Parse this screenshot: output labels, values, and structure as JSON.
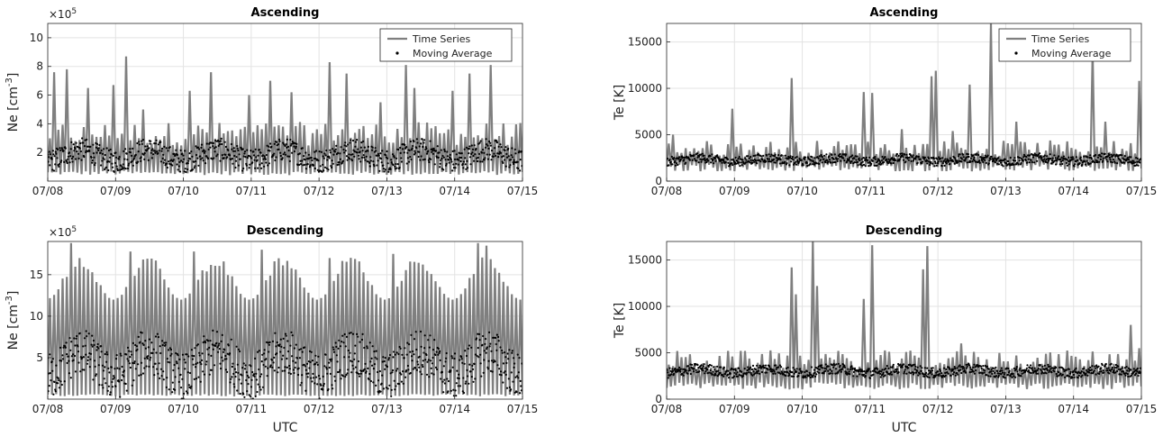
{
  "figure": {
    "xticklabels": [
      "07/08",
      "07/09",
      "07/10",
      "07/11",
      "07/12",
      "07/13",
      "07/14",
      "07/15"
    ],
    "shared_xlabel": "UTC",
    "colors": {
      "series": "#7f7f7f",
      "average": "#000000",
      "grid": "#e3e3e3"
    }
  },
  "chart_data": [
    {
      "type": "line",
      "title": "Ascending",
      "ylabel": "Ne [cm",
      "ylabel_sup": "-3",
      "ylabel_close": "]",
      "exponent_label": "×10",
      "exponent_sup": "5",
      "xlim": [
        0,
        7
      ],
      "ylim": [
        0,
        11
      ],
      "yticks": [
        2,
        4,
        6,
        8,
        10
      ],
      "legend": {
        "position": "top-right",
        "entries": [
          "Time Series",
          "Moving Average"
        ]
      },
      "series": [
        {
          "name": "Time Series",
          "kind": "spikes",
          "period": 0.0625,
          "baseline_low": 0.6,
          "baseline_high": 3.3,
          "peaks": [
            [
              0.05,
              7.6
            ],
            [
              0.22,
              7.8
            ],
            [
              0.55,
              6.5
            ],
            [
              0.92,
              6.7
            ],
            [
              1.12,
              8.7
            ],
            [
              1.35,
              5.0
            ],
            [
              2.05,
              6.3
            ],
            [
              2.38,
              7.6
            ],
            [
              2.95,
              6.0
            ],
            [
              3.25,
              7.0
            ],
            [
              3.58,
              6.2
            ],
            [
              4.15,
              8.3
            ],
            [
              4.38,
              7.5
            ],
            [
              4.88,
              5.5
            ],
            [
              5.22,
              8.1
            ],
            [
              5.38,
              6.5
            ],
            [
              5.92,
              6.3
            ],
            [
              6.2,
              7.5
            ],
            [
              6.5,
              8.1
            ],
            [
              6.98,
              11.0
            ]
          ]
        },
        {
          "name": "Moving Average",
          "kind": "band",
          "low": 1.0,
          "high": 2.6,
          "amplitude": 0.4,
          "cycles": 7
        }
      ]
    },
    {
      "type": "line",
      "title": "Ascending",
      "ylabel": "Te [K]",
      "xlim": [
        0,
        7
      ],
      "ylim": [
        0,
        17000
      ],
      "yticks": [
        0,
        5000,
        10000,
        15000
      ],
      "legend": {
        "position": "top-right",
        "entries": [
          "Time Series",
          "Moving Average"
        ]
      },
      "series": [
        {
          "name": "Time Series",
          "kind": "spikes",
          "period": 0.0625,
          "baseline_low": 1500,
          "baseline_high": 3500,
          "peaks": [
            [
              0.05,
              5000
            ],
            [
              0.95,
              7800
            ],
            [
              1.82,
              11100
            ],
            [
              2.9,
              9600
            ],
            [
              3.0,
              9500
            ],
            [
              3.45,
              5600
            ],
            [
              3.88,
              11300
            ],
            [
              3.95,
              11900
            ],
            [
              4.18,
              5400
            ],
            [
              4.42,
              10400
            ],
            [
              4.72,
              17000
            ],
            [
              5.1,
              6400
            ],
            [
              6.22,
              6300
            ],
            [
              6.28,
              14000
            ],
            [
              6.42,
              6400
            ],
            [
              6.95,
              10800
            ],
            [
              7.0,
              14100
            ]
          ]
        },
        {
          "name": "Moving Average",
          "kind": "band",
          "low": 1800,
          "high": 2800,
          "amplitude": 200,
          "cycles": 7
        }
      ]
    },
    {
      "type": "line",
      "title": "Descending",
      "ylabel": "Ne [cm",
      "ylabel_sup": "-3",
      "ylabel_close": "]",
      "exponent_label": "×10",
      "exponent_sup": "5",
      "xlim": [
        0,
        7
      ],
      "ylim": [
        0,
        19
      ],
      "yticks": [
        5,
        10,
        15
      ],
      "series": [
        {
          "name": "Time Series",
          "kind": "spikes",
          "period": 0.0625,
          "baseline_low": 0.5,
          "baseline_high": 7.0,
          "peaks": [
            [
              0.32,
              18.8
            ],
            [
              1.2,
              17.8
            ],
            [
              2.1,
              17.8
            ],
            [
              3.15,
              18.0
            ],
            [
              4.1,
              17.0
            ],
            [
              5.05,
              17.5
            ],
            [
              6.3,
              18.8
            ],
            [
              6.45,
              18.5
            ]
          ],
          "cycle_min": 12,
          "cycle_max": 17
        },
        {
          "name": "Moving Average",
          "kind": "band",
          "low": 1.5,
          "high": 7.0,
          "amplitude": 1.5,
          "cycles": 7
        }
      ]
    },
    {
      "type": "line",
      "title": "Descending",
      "ylabel": "Te [K]",
      "xlim": [
        0,
        7
      ],
      "ylim": [
        0,
        17000
      ],
      "yticks": [
        0,
        5000,
        10000,
        15000
      ],
      "series": [
        {
          "name": "Time Series",
          "kind": "spikes",
          "period": 0.0625,
          "baseline_low": 1500,
          "baseline_high": 4200,
          "peaks": [
            [
              0.6,
              200
            ],
            [
              1.82,
              14200
            ],
            [
              1.9,
              11300
            ],
            [
              2.12,
              17000
            ],
            [
              2.2,
              12200
            ],
            [
              2.85,
              7500
            ],
            [
              2.9,
              10800
            ],
            [
              2.98,
              16600
            ],
            [
              3.72,
              10300
            ],
            [
              3.82,
              16500
            ],
            [
              3.78,
              14000
            ],
            [
              4.3,
              6000
            ],
            [
              6.82,
              8000
            ],
            [
              6.92,
              5500
            ]
          ]
        },
        {
          "name": "Moving Average",
          "kind": "band",
          "low": 2500,
          "high": 3600,
          "amplitude": 250,
          "cycles": 7
        }
      ]
    }
  ]
}
